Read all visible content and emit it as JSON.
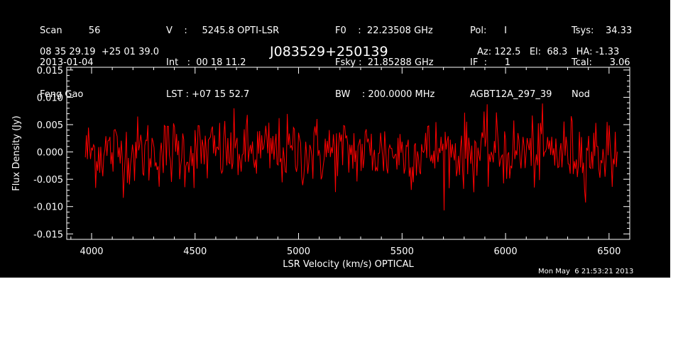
{
  "header": {
    "col1": [
      "Scan         56",
      "2013-01-04",
      "Feng Gao"
    ],
    "col2": [
      "V    :     5245.8 OPTI-LSR",
      "Int   :  00 18 11.2",
      "LST : +07 15 52.7"
    ],
    "col3": [
      "F0    :  22.23508 GHz",
      "Fsky :  21.85288 GHz",
      "BW    : 200.0000 MHz"
    ],
    "col4": [
      "Pol:      I",
      "IF  :      1",
      "AGBT12A_297_39"
    ],
    "col5": [
      "Tsys:    34.33",
      "Tcal:      3.06",
      "Nod"
    ],
    "coords": "08 35 29.19  +25 01 39.0",
    "pointing": "Az: 122.5   El:  68.3   HA: -1.33",
    "timestamp": "Mon May  6 21:53:21 2013"
  },
  "colors": {
    "background": "#000000",
    "axes": "#ffffff",
    "trace": "#ff0000"
  },
  "chart_data": {
    "type": "line",
    "title": "J083529+250139",
    "xlabel": "LSR Velocity (km/s) OPTICAL",
    "ylabel": "Flux Density (Jy)",
    "xlim": [
      3880,
      6600
    ],
    "ylim": [
      -0.016,
      0.0155
    ],
    "xticks": [
      4000,
      4500,
      5000,
      5500,
      6000,
      6500
    ],
    "xtick_labels": [
      "4000",
      "4500",
      "5000",
      "5500",
      "6000",
      "6500"
    ],
    "yticks": [
      -0.015,
      -0.01,
      -0.005,
      0.0,
      0.005,
      0.01,
      0.015
    ],
    "ytick_labels": [
      "-0.015",
      "-0.010",
      "-0.005",
      "0.000",
      "0.005",
      "0.010",
      "0.015"
    ],
    "grid": false,
    "series": [
      {
        "x_start": 3970,
        "x_end": 6540,
        "points": 520,
        "mean": 0.0,
        "noise_rms": 0.0032,
        "peak_max": 0.0106,
        "peak_min": -0.0107
      }
    ]
  }
}
